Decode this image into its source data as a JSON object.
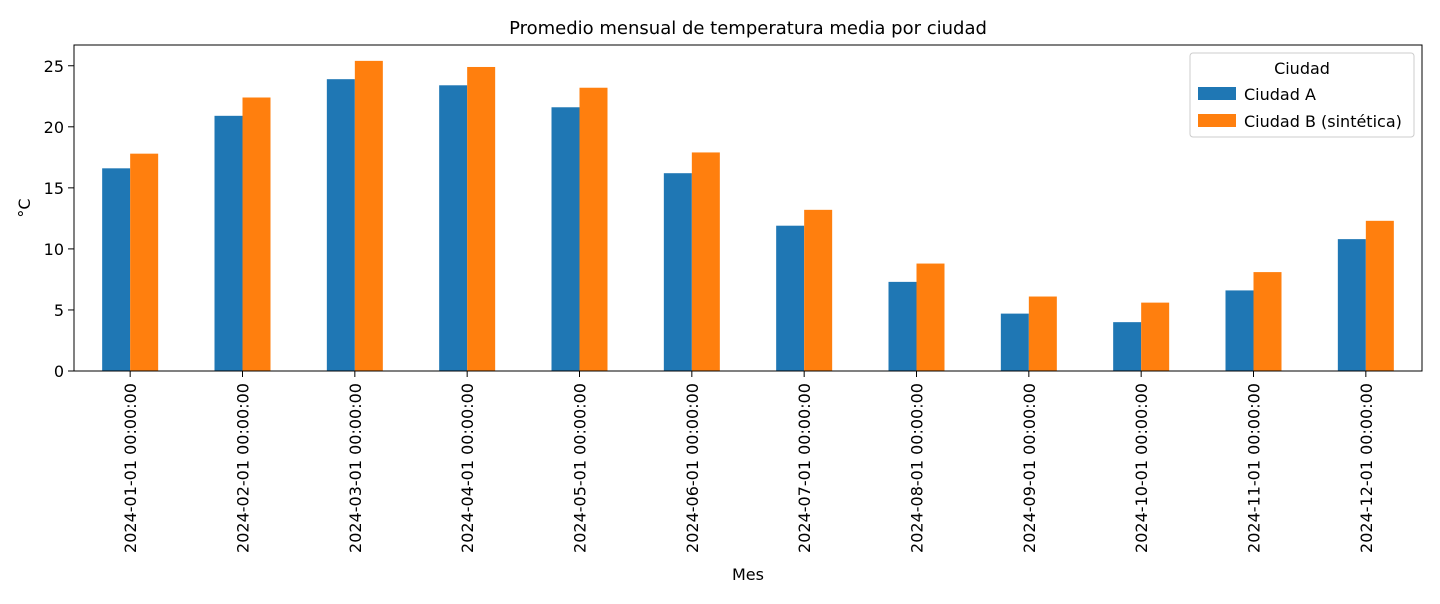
{
  "chart_data": {
    "type": "bar",
    "title": "Promedio mensual de temperatura media por ciudad",
    "xlabel": "Mes",
    "ylabel": "°C",
    "ylim": [
      0,
      26.7
    ],
    "yticks": [
      0,
      5,
      10,
      15,
      20,
      25
    ],
    "grid": false,
    "legend_title": "Ciudad",
    "legend_position": "top-right",
    "categories": [
      "2024-01-01 00:00:00",
      "2024-02-01 00:00:00",
      "2024-03-01 00:00:00",
      "2024-04-01 00:00:00",
      "2024-05-01 00:00:00",
      "2024-06-01 00:00:00",
      "2024-07-01 00:00:00",
      "2024-08-01 00:00:00",
      "2024-09-01 00:00:00",
      "2024-10-01 00:00:00",
      "2024-11-01 00:00:00",
      "2024-12-01 00:00:00"
    ],
    "series": [
      {
        "name": "Ciudad A",
        "color": "#1f77b4",
        "values": [
          16.6,
          20.9,
          23.9,
          23.4,
          21.6,
          16.2,
          11.9,
          7.3,
          4.7,
          4.0,
          6.6,
          10.8
        ]
      },
      {
        "name": "Ciudad B (sintética)",
        "color": "#ff7f0e",
        "values": [
          17.8,
          22.4,
          25.4,
          24.9,
          23.2,
          17.9,
          13.2,
          8.8,
          6.1,
          5.6,
          8.1,
          12.3
        ]
      }
    ]
  }
}
